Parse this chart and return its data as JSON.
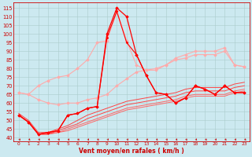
{
  "xlabel": "Vent moyen/en rafales ( km/h )",
  "xlim": [
    -0.5,
    23.5
  ],
  "ylim": [
    38,
    118
  ],
  "yticks": [
    40,
    45,
    50,
    55,
    60,
    65,
    70,
    75,
    80,
    85,
    90,
    95,
    100,
    105,
    110,
    115
  ],
  "xticks": [
    0,
    1,
    2,
    3,
    4,
    5,
    6,
    7,
    8,
    9,
    10,
    11,
    12,
    13,
    14,
    15,
    16,
    17,
    18,
    19,
    20,
    21,
    22,
    23
  ],
  "bg_color": "#cce9f0",
  "grid_color": "#aacccc",
  "lines": [
    {
      "x": [
        0,
        1,
        2,
        3,
        4,
        5,
        6,
        7,
        8,
        9,
        10,
        11,
        12,
        13,
        14,
        15,
        16,
        17,
        18,
        19,
        20,
        21,
        22,
        23
      ],
      "y": [
        53,
        49,
        42,
        43,
        44,
        53,
        54,
        57,
        58,
        100,
        115,
        110,
        88,
        76,
        66,
        65,
        60,
        63,
        70,
        68,
        65,
        70,
        66,
        66
      ],
      "color": "#ff0000",
      "marker": "D",
      "markersize": 1.8,
      "linewidth": 0.9,
      "zorder": 5
    },
    {
      "x": [
        0,
        1,
        2,
        3,
        4,
        5,
        6,
        7,
        8,
        9,
        10,
        11,
        12,
        13,
        14,
        15,
        16,
        17,
        18,
        19,
        20,
        21,
        22,
        23
      ],
      "y": [
        53,
        49,
        42,
        43,
        44,
        53,
        54,
        57,
        58,
        98,
        113,
        95,
        88,
        76,
        66,
        65,
        60,
        63,
        70,
        68,
        65,
        70,
        66,
        66
      ],
      "color": "#ff0000",
      "marker": "P",
      "markersize": 1.8,
      "linewidth": 0.8,
      "zorder": 4
    },
    {
      "x": [
        0,
        1,
        2,
        3,
        4,
        5,
        6,
        7,
        8,
        9,
        10,
        11,
        12,
        13,
        14,
        15,
        16,
        17,
        18,
        19,
        20,
        21,
        22,
        23
      ],
      "y": [
        66,
        65,
        62,
        60,
        59,
        60,
        60,
        62,
        63,
        65,
        70,
        74,
        78,
        79,
        80,
        82,
        85,
        86,
        88,
        88,
        88,
        90,
        82,
        81
      ],
      "color": "#ffaaaa",
      "marker": "D",
      "markersize": 1.8,
      "linewidth": 0.8,
      "zorder": 3
    },
    {
      "x": [
        0,
        1,
        2,
        3,
        4,
        5,
        6,
        7,
        8,
        9,
        10,
        11,
        12,
        13,
        14,
        15,
        16,
        17,
        18,
        19,
        20,
        21,
        22,
        23
      ],
      "y": [
        66,
        65,
        70,
        73,
        75,
        76,
        80,
        85,
        95,
        96,
        113,
        96,
        82,
        79,
        79,
        82,
        86,
        88,
        90,
        90,
        90,
        92,
        82,
        81
      ],
      "color": "#ffaaaa",
      "marker": "D",
      "markersize": 1.8,
      "linewidth": 0.8,
      "zorder": 3
    },
    {
      "x": [
        0,
        1,
        2,
        3,
        4,
        5,
        6,
        7,
        8,
        9,
        10,
        11,
        12,
        13,
        14,
        15,
        16,
        17,
        18,
        19,
        20,
        21,
        22,
        23
      ],
      "y": [
        53,
        49,
        42,
        42,
        43,
        44,
        46,
        48,
        50,
        52,
        54,
        56,
        57,
        58,
        59,
        60,
        61,
        63,
        64,
        64,
        64,
        64,
        66,
        67
      ],
      "color": "#ff6666",
      "marker": null,
      "markersize": 0,
      "linewidth": 0.7,
      "zorder": 2
    },
    {
      "x": [
        0,
        1,
        2,
        3,
        4,
        5,
        6,
        7,
        8,
        9,
        10,
        11,
        12,
        13,
        14,
        15,
        16,
        17,
        18,
        19,
        20,
        21,
        22,
        23
      ],
      "y": [
        53,
        49,
        42,
        42,
        43,
        45,
        47,
        49,
        51,
        53,
        55,
        57,
        58,
        59,
        60,
        61,
        62,
        64,
        65,
        65,
        65,
        65,
        67,
        68
      ],
      "color": "#ff6666",
      "marker": null,
      "markersize": 0,
      "linewidth": 0.7,
      "zorder": 2
    },
    {
      "x": [
        0,
        1,
        2,
        3,
        4,
        5,
        6,
        7,
        8,
        9,
        10,
        11,
        12,
        13,
        14,
        15,
        16,
        17,
        18,
        19,
        20,
        21,
        22,
        23
      ],
      "y": [
        53,
        49,
        42,
        42,
        44,
        46,
        48,
        51,
        53,
        55,
        57,
        59,
        60,
        61,
        62,
        63,
        64,
        66,
        67,
        67,
        67,
        67,
        69,
        70
      ],
      "color": "#ff4444",
      "marker": null,
      "markersize": 0,
      "linewidth": 0.7,
      "zorder": 2
    },
    {
      "x": [
        0,
        1,
        2,
        3,
        4,
        5,
        6,
        7,
        8,
        9,
        10,
        11,
        12,
        13,
        14,
        15,
        16,
        17,
        18,
        19,
        20,
        21,
        22,
        23
      ],
      "y": [
        54,
        50,
        43,
        43,
        45,
        47,
        50,
        53,
        55,
        57,
        59,
        61,
        62,
        63,
        64,
        65,
        66,
        68,
        69,
        69,
        69,
        69,
        71,
        72
      ],
      "color": "#ff4444",
      "marker": null,
      "markersize": 0,
      "linewidth": 0.7,
      "zorder": 2
    }
  ]
}
